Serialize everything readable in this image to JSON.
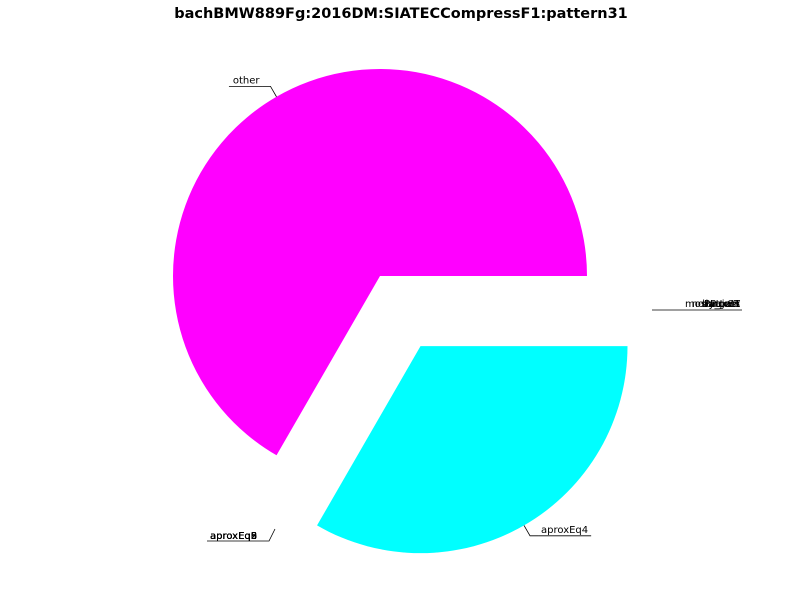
{
  "chart_data": {
    "type": "pie",
    "title": "bachBMW889Fg:2016DM:SIATECCompressF1:pattern31",
    "slices": [
      {
        "label": "other",
        "value": 0.6667,
        "color": "#ff00ff",
        "exploded": false
      },
      {
        "label": "aproxEq4",
        "value": 0.3333,
        "color": "#00ffff",
        "exploded": true
      }
    ],
    "stacked_right_labels": [
      "largest",
      "by_part",
      "mostPoints",
      "maxCT",
      "noPattern"
    ],
    "stacked_left_labels": [
      "aproxEq3",
      "aproxEq2",
      "aproxEq5",
      "aproxEq6",
      "aproxEq8",
      "aproxEq9"
    ],
    "legend": "none",
    "grid": false
  }
}
